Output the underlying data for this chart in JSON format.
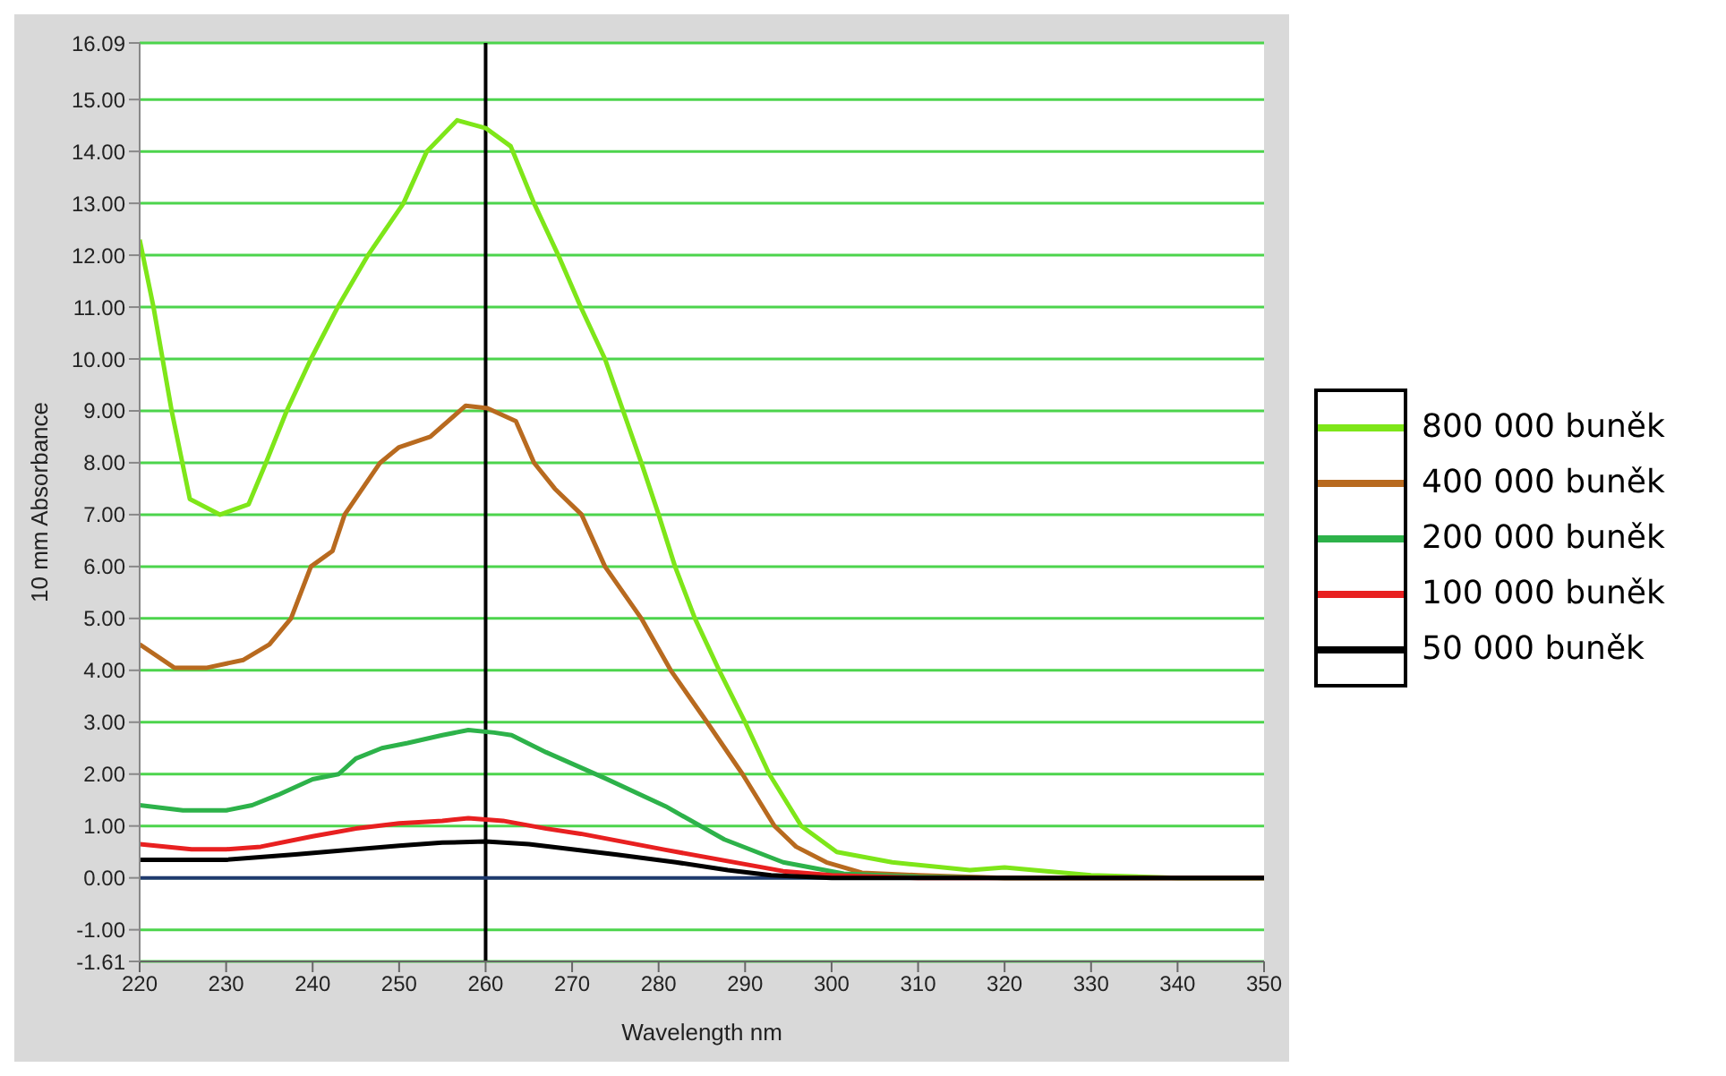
{
  "chart_data": {
    "type": "line",
    "xlabel": "Wavelength nm",
    "ylabel": "10 mm Absorbance",
    "xlim": [
      220,
      350
    ],
    "xticks": [
      220,
      230,
      240,
      250,
      260,
      270,
      280,
      290,
      300,
      310,
      320,
      330,
      340,
      350
    ],
    "ylim": [
      -1.61,
      16.09
    ],
    "yticks": [
      {
        "value": -1.61,
        "label": "-1.61"
      },
      {
        "value": -1,
        "label": "-1.00"
      },
      {
        "value": 0,
        "label": "0.00"
      },
      {
        "value": 1,
        "label": "1.00"
      },
      {
        "value": 2,
        "label": "2.00"
      },
      {
        "value": 3,
        "label": "3.00"
      },
      {
        "value": 4,
        "label": "4.00"
      },
      {
        "value": 5,
        "label": "5.00"
      },
      {
        "value": 6,
        "label": "6.00"
      },
      {
        "value": 7,
        "label": "7.00"
      },
      {
        "value": 8,
        "label": "8.00"
      },
      {
        "value": 9,
        "label": "9.00"
      },
      {
        "value": 10,
        "label": "10.00"
      },
      {
        "value": 11,
        "label": "11.00"
      },
      {
        "value": 12,
        "label": "12.00"
      },
      {
        "value": 13,
        "label": "13.00"
      },
      {
        "value": 14,
        "label": "14.00"
      },
      {
        "value": 15,
        "label": "15.00"
      },
      {
        "value": 16.09,
        "label": "16.09"
      }
    ],
    "grid": "y",
    "legend": "right",
    "marker": "none",
    "line_style": "solid",
    "ref_lines": [
      {
        "axis": "x",
        "value": 260,
        "label": null,
        "color": "#000000"
      },
      {
        "axis": "y",
        "value": 0,
        "label": null,
        "color": "#1f3a6e"
      }
    ],
    "series": [
      {
        "name": "800 000 buněk",
        "color": "#7ee619",
        "x": [
          220,
          221.6,
          223.7,
          225.8,
          229.3,
          232.6,
          234.6,
          237,
          239.8,
          242.9,
          246.4,
          250.5,
          253.2,
          256.7,
          260,
          262.9,
          265.6,
          268.4,
          271,
          273.8,
          275.9,
          278,
          280,
          281.9,
          284.2,
          287,
          290,
          292.8,
          296.5,
          300.6,
          307,
          316,
          320,
          330,
          340,
          350
        ],
        "values": [
          12.3,
          11,
          9,
          7.3,
          7,
          7.2,
          8,
          9,
          10,
          11,
          12,
          13,
          14,
          14.6,
          14.45,
          14.1,
          13,
          12,
          11,
          10,
          9,
          8,
          7,
          6,
          5,
          4,
          3,
          2,
          1,
          0.5,
          0.3,
          0.15,
          0.2,
          0.05,
          0,
          0
        ]
      },
      {
        "name": "400 000 buněk",
        "color": "#b86a1f",
        "x": [
          220,
          224,
          227.8,
          232,
          235,
          237.5,
          239.8,
          242.3,
          243.7,
          247.8,
          250,
          253.6,
          257.7,
          260.2,
          263.5,
          265.6,
          268,
          271.1,
          273.8,
          278,
          281.4,
          285.6,
          289.7,
          293.4,
          295.9,
          299.4,
          303.5,
          310,
          320,
          350
        ],
        "values": [
          4.5,
          4.05,
          4.05,
          4.2,
          4.5,
          5,
          6,
          6.3,
          7,
          8,
          8.3,
          8.5,
          9.1,
          9.05,
          8.8,
          8,
          7.5,
          7,
          6,
          5,
          4,
          3,
          2,
          1,
          0.6,
          0.3,
          0.1,
          0.05,
          0,
          0
        ]
      },
      {
        "name": "200 000 buněk",
        "color": "#2db24a",
        "x": [
          220,
          225,
          230,
          233,
          236,
          240,
          243,
          245,
          248,
          251,
          255,
          258,
          261,
          263,
          267,
          273.8,
          280.8,
          287.6,
          294.4,
          301.4,
          310,
          320,
          350
        ],
        "values": [
          1.4,
          1.3,
          1.3,
          1.4,
          1.6,
          1.9,
          2,
          2.3,
          2.5,
          2.6,
          2.75,
          2.85,
          2.8,
          2.75,
          2.42,
          1.92,
          1.38,
          0.74,
          0.3,
          0.08,
          0.02,
          0,
          0
        ]
      },
      {
        "name": "100 000 buněk",
        "color": "#e82020",
        "x": [
          220,
          226,
          230,
          234,
          240,
          245,
          250,
          255,
          258,
          262,
          267,
          271,
          280.8,
          294.4,
          300,
          310,
          350
        ],
        "values": [
          0.65,
          0.55,
          0.55,
          0.6,
          0.8,
          0.95,
          1.05,
          1.1,
          1.15,
          1.1,
          0.95,
          0.85,
          0.54,
          0.13,
          0.05,
          0,
          0
        ]
      },
      {
        "name": "50 000 buněk",
        "color": "#000000",
        "x": [
          220,
          230,
          238,
          245,
          250,
          255,
          260,
          265,
          270,
          275,
          282,
          288,
          293,
          300,
          350
        ],
        "values": [
          0.35,
          0.35,
          0.45,
          0.55,
          0.62,
          0.68,
          0.7,
          0.65,
          0.55,
          0.45,
          0.3,
          0.15,
          0.05,
          0,
          0
        ]
      }
    ]
  }
}
